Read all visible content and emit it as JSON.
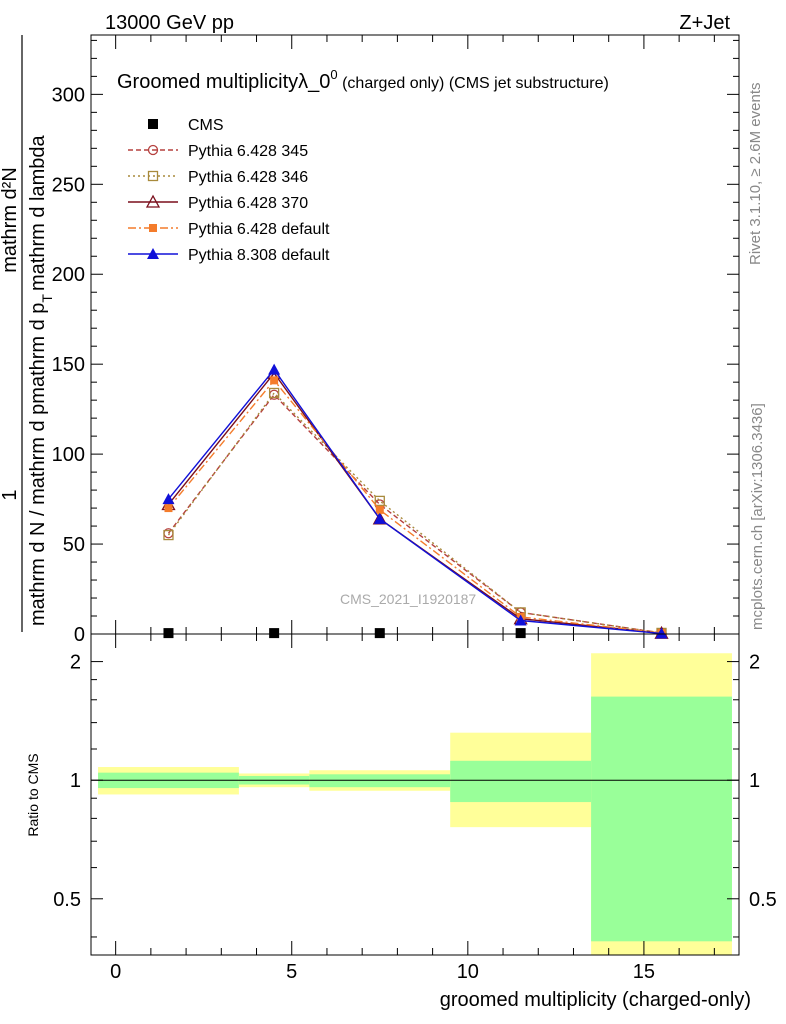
{
  "header": {
    "energy_label": "13000 GeV pp",
    "process_label": "Z+Jet"
  },
  "side_labels": {
    "rivet": "Rivet 3.1.10, ≥ 2.6M events",
    "mcplots": "mcplots.cern.ch [arXiv:1306.3436]"
  },
  "main_plot": {
    "title_main": "Groomed multiplicityλ_0",
    "title_sup": "0",
    "title_rest": " (charged only) (CMS jet substructure)",
    "ylabel_numerator": "1",
    "ylabel_top": "mathrm d²N",
    "ylabel_bottom_1": "mathrm d N / mathrm d p",
    "ylabel_bottom_2": "mathrm d p",
    "ylabel_bottom_3": "mathrm d lambda",
    "analysis_watermark": "CMS_2021_I1920187"
  },
  "ratio_plot": {
    "ylabel": "Ratio to CMS",
    "xlabel": "groomed multiplicity (charged-only)"
  },
  "colors": {
    "cms": "#000000",
    "py345": "#b5413f",
    "py346": "#a88a3c",
    "py370": "#7a0f1c",
    "pyd64": "#f47c2b",
    "py8": "#1010d8",
    "band_inner": "#99ff99",
    "band_outer": "#ffff99"
  },
  "chart_data": [
    {
      "type": "line",
      "x_axis": {
        "range": [
          -0.7,
          17.7
        ],
        "ticks": [
          0,
          5,
          10,
          15
        ]
      },
      "y_axis": {
        "range": [
          0,
          333
        ],
        "ticks": [
          50,
          100,
          150,
          200,
          250,
          300
        ]
      },
      "legend_placement": "top-left",
      "series": [
        {
          "name": "CMS",
          "key": "cms",
          "marker": "square-filled",
          "dash": "",
          "x": [
            1.5,
            4.5,
            7.5,
            11.5,
            15.5
          ],
          "y": [
            0.5,
            0.5,
            0.5,
            0.5,
            0.3
          ]
        },
        {
          "name": "Pythia 6.428 345",
          "key": "py345",
          "marker": "circle-open",
          "dash": "5,3",
          "x": [
            1.5,
            4.5,
            7.5,
            11.5,
            15.5
          ],
          "y": [
            56,
            133,
            72,
            12,
            0.6
          ]
        },
        {
          "name": "Pythia 6.428 346",
          "key": "py346",
          "marker": "square-open",
          "dash": "2,3",
          "x": [
            1.5,
            4.5,
            7.5,
            11.5,
            15.5
          ],
          "y": [
            55,
            134,
            74,
            12,
            0.6
          ]
        },
        {
          "name": "Pythia 6.428 370",
          "key": "py370",
          "marker": "triangle-open",
          "dash": "",
          "x": [
            1.5,
            4.5,
            7.5,
            11.5,
            15.5
          ],
          "y": [
            72,
            145,
            64,
            8.5,
            0.4
          ]
        },
        {
          "name": "Pythia 6.428 default",
          "key": "pyd64",
          "marker": "square-filled-small",
          "dash": "8,3,2,3",
          "x": [
            1.5,
            4.5,
            7.5,
            11.5,
            15.5
          ],
          "y": [
            70,
            141,
            69,
            9.5,
            0.5
          ]
        },
        {
          "name": "Pythia 8.308 default",
          "key": "py8",
          "marker": "triangle-filled",
          "dash": "",
          "x": [
            1.5,
            4.5,
            7.5,
            11.5,
            15.5
          ],
          "y": [
            75,
            147,
            64,
            7.5,
            0.3
          ]
        }
      ]
    },
    {
      "type": "area",
      "x_axis": {
        "range": [
          -0.7,
          17.7
        ],
        "ticks": [
          0,
          5,
          10,
          15
        ]
      },
      "y_axis": {
        "scale": "log",
        "range": [
          0.36,
          2.35
        ],
        "ticks": [
          0.5,
          1,
          2
        ]
      },
      "reference_line": 1,
      "bins": [
        {
          "x_low": -0.5,
          "x_high": 3.5,
          "inner": [
            0.955,
            1.045
          ],
          "outer": [
            0.92,
            1.08
          ]
        },
        {
          "x_low": 3.5,
          "x_high": 5.5,
          "inner": [
            0.975,
            1.025
          ],
          "outer": [
            0.96,
            1.04
          ]
        },
        {
          "x_low": 5.5,
          "x_high": 9.5,
          "inner": [
            0.96,
            1.035
          ],
          "outer": [
            0.94,
            1.06
          ]
        },
        {
          "x_low": 9.5,
          "x_high": 13.5,
          "inner": [
            0.88,
            1.12
          ],
          "outer": [
            0.76,
            1.32
          ]
        },
        {
          "x_low": 13.5,
          "x_high": 17.5,
          "inner": [
            0.39,
            1.63
          ],
          "outer": [
            0.36,
            2.1
          ]
        }
      ]
    }
  ]
}
